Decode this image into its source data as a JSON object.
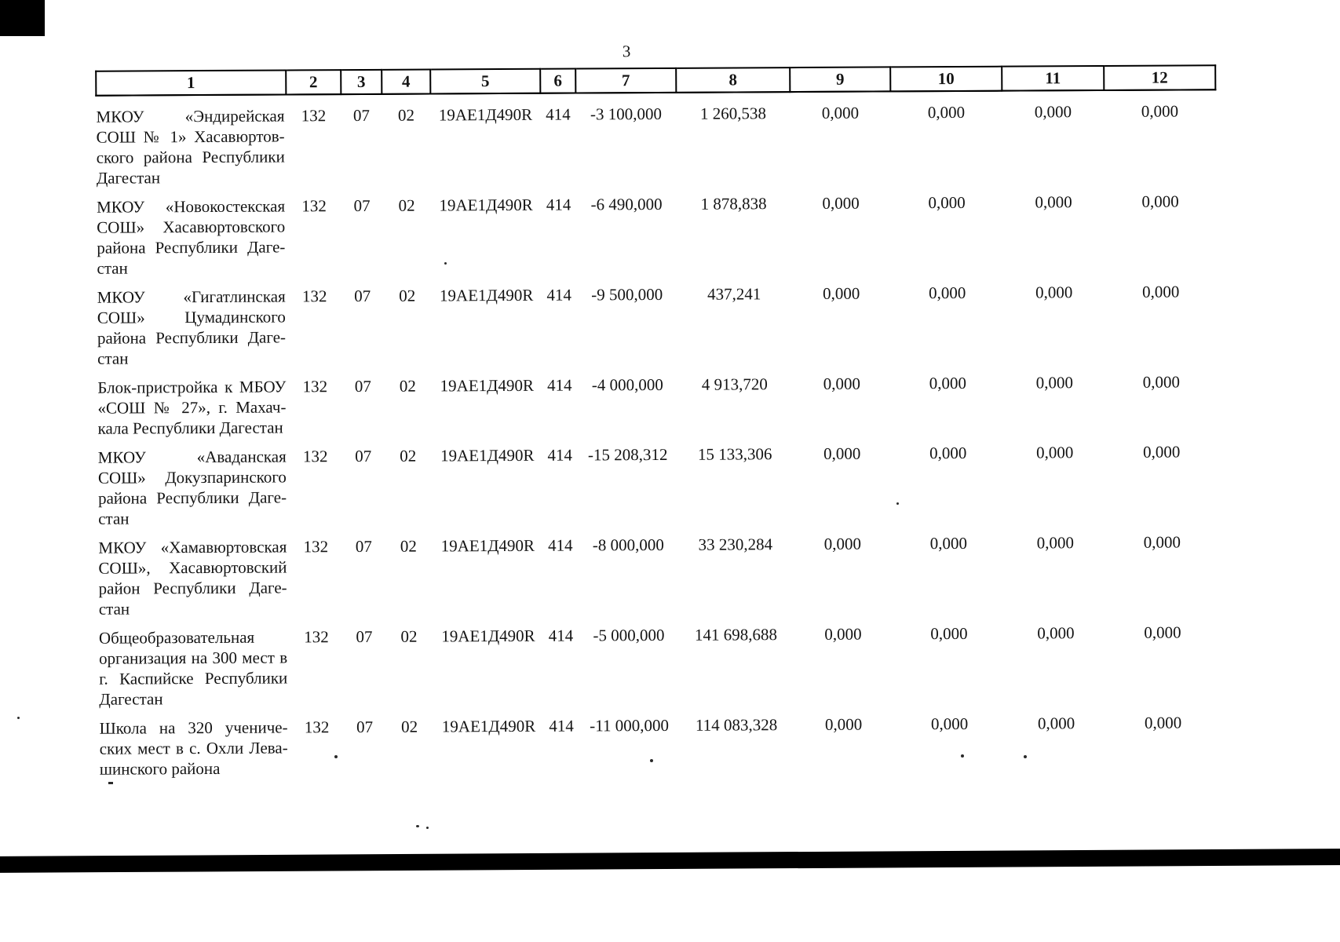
{
  "page": {
    "number": "3"
  },
  "table": {
    "column_numbers": [
      "1",
      "2",
      "3",
      "4",
      "5",
      "6",
      "7",
      "8",
      "9",
      "10",
      "11",
      "12"
    ],
    "rows": [
      {
        "name_lines": [
          "МКОУ «Эндирейская",
          "СОШ № 1» Хасавюртов-",
          "ского района Республики",
          "Дагестан"
        ],
        "values": [
          "132",
          "07",
          "02",
          "19АЕ1Д490R",
          "414",
          "-3 100,000",
          "1 260,538",
          "0,000",
          "0,000",
          "0,000",
          "0,000"
        ]
      },
      {
        "name_lines": [
          "МКОУ «Новокостекская",
          "СОШ» Хасавюртовского",
          "района Республики Даге-",
          "стан"
        ],
        "values": [
          "132",
          "07",
          "02",
          "19АЕ1Д490R",
          "414",
          "-6 490,000",
          "1 878,838",
          "0,000",
          "0,000",
          "0,000",
          "0,000"
        ]
      },
      {
        "name_lines": [
          "МКОУ «Гигатлинская",
          "СОШ» Цумадинского",
          "района Республики Даге-",
          "стан"
        ],
        "values": [
          "132",
          "07",
          "02",
          "19АЕ1Д490R",
          "414",
          "-9 500,000",
          "437,241",
          "0,000",
          "0,000",
          "0,000",
          "0,000"
        ]
      },
      {
        "name_lines": [
          "Блок-пристройка к МБОУ",
          "«СОШ № 27», г. Махач-",
          "кала Республики Дагестан"
        ],
        "values": [
          "132",
          "07",
          "02",
          "19АЕ1Д490R",
          "414",
          "-4 000,000",
          "4 913,720",
          "0,000",
          "0,000",
          "0,000",
          "0,000"
        ]
      },
      {
        "name_lines": [
          "МКОУ «Аваданская",
          "СОШ» Докузпаринского",
          "района Республики Даге-",
          "стан"
        ],
        "values": [
          "132",
          "07",
          "02",
          "19АЕ1Д490R",
          "414",
          "-15 208,312",
          "15 133,306",
          "0,000",
          "0,000",
          "0,000",
          "0,000"
        ]
      },
      {
        "name_lines": [
          "МКОУ «Хамавюртовская",
          "СОШ», Хасавюртовский",
          "район Республики Даге-",
          "стан"
        ],
        "values": [
          "132",
          "07",
          "02",
          "19АЕ1Д490R",
          "414",
          "-8 000,000",
          "33 230,284",
          "0,000",
          "0,000",
          "0,000",
          "0,000"
        ]
      },
      {
        "name_lines": [
          "Общеобразовательная",
          "организация на 300 мест в",
          "г. Каспийске Республики",
          "Дагестан"
        ],
        "values": [
          "132",
          "07",
          "02",
          "19АЕ1Д490R",
          "414",
          "-5 000,000",
          "141 698,688",
          "0,000",
          "0,000",
          "0,000",
          "0,000"
        ]
      },
      {
        "name_lines": [
          "Школа на 320 ученичe-",
          "ских мест в с. Охли Лева-",
          "шинского района"
        ],
        "values": [
          "132",
          "07",
          "02",
          "19АЕ1Д490R",
          "414",
          "-11 000,000",
          "114 083,328",
          "0,000",
          "0,000",
          "0,000",
          "0,000"
        ]
      }
    ]
  }
}
